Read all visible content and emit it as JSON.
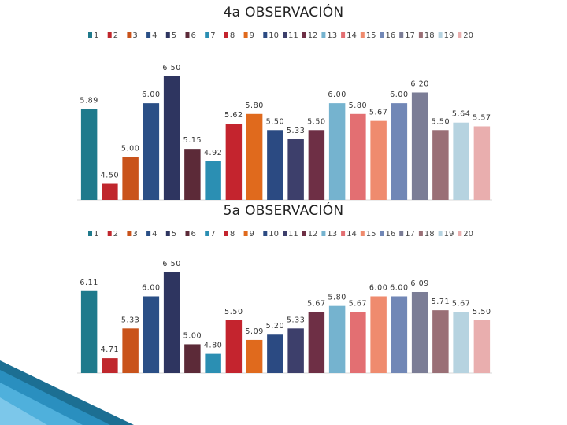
{
  "chart_data": [
    {
      "type": "bar",
      "title": "4a OBSERVACIÓN",
      "categories": [
        "1",
        "2",
        "3",
        "4",
        "5",
        "6",
        "7",
        "8",
        "9",
        "10",
        "11",
        "12",
        "13",
        "14",
        "15",
        "16",
        "17",
        "18",
        "19",
        "20"
      ],
      "values": [
        5.89,
        4.5,
        5.0,
        6.0,
        6.5,
        5.15,
        4.92,
        5.62,
        5.8,
        5.5,
        5.33,
        5.5,
        6.0,
        5.8,
        5.67,
        6.0,
        6.2,
        5.5,
        5.64,
        5.57
      ],
      "labels": [
        "5.89",
        "4.50",
        "5.00",
        "6.00",
        "6.50",
        "5.15",
        "4.92",
        "5.62",
        "5.80",
        "5.50",
        "5.33",
        "5.50",
        "6.00",
        "5.80",
        "5.67",
        "6.00",
        "6.20",
        "5.50",
        "5.64",
        "5.57"
      ],
      "legend_position": "top",
      "ylim": [
        4.2,
        6.5
      ],
      "grid": false
    },
    {
      "type": "bar",
      "title": "5a OBSERVACIÓN",
      "categories": [
        "1",
        "2",
        "3",
        "4",
        "5",
        "6",
        "7",
        "8",
        "9",
        "10",
        "11",
        "12",
        "13",
        "14",
        "15",
        "16",
        "17",
        "18",
        "19",
        "20"
      ],
      "values": [
        6.11,
        4.71,
        5.33,
        6.0,
        6.5,
        5.0,
        4.8,
        5.5,
        5.09,
        5.2,
        5.33,
        5.67,
        5.8,
        5.67,
        6.0,
        6.0,
        6.09,
        5.71,
        5.67,
        5.5
      ],
      "labels": [
        "6.11",
        "4.71",
        "5.33",
        "6.00",
        "6.50",
        "5.00",
        "4.80",
        "5.50",
        "5.09",
        "5.20",
        "5.33",
        "5.67",
        "5.80",
        "5.67",
        "6.00",
        "6.00",
        "6.09",
        "5.71",
        "5.67",
        "5.50"
      ],
      "legend_position": "top",
      "ylim": [
        4.4,
        6.5
      ],
      "grid": false
    }
  ],
  "colors": [
    "#1f7a8c",
    "#c0272d",
    "#c9531b",
    "#2a4f86",
    "#2e3560",
    "#5c2a38",
    "#2b8fb3",
    "#c4242e",
    "#e06a1d",
    "#2b4a82",
    "#3d3f6b",
    "#6e2f45",
    "#75b3cf",
    "#e36f72",
    "#ef8b6e",
    "#7187b6",
    "#7b7d96",
    "#9a6f76",
    "#b6d3e0",
    "#e9aeae"
  ]
}
